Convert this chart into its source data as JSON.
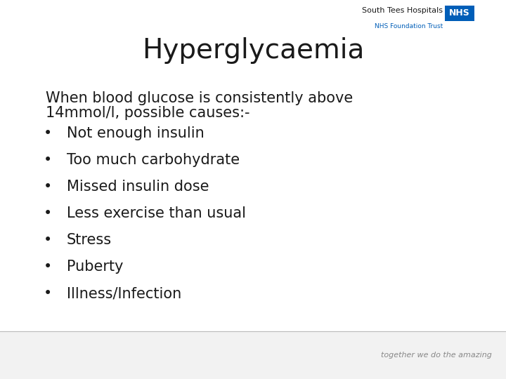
{
  "title": "Hyperglycaemia",
  "title_fontsize": 28,
  "title_color": "#1a1a1a",
  "background_color": "#ffffff",
  "intro_text_line1": "When blood glucose is consistently above",
  "intro_text_line2": "14mmol/l, possible causes:-",
  "bullet_items": [
    "Not enough insulin",
    "Too much carbohydrate",
    "Missed insulin dose",
    "Less exercise than usual",
    "Stress",
    "Puberty",
    "Illness/Infection"
  ],
  "text_color": "#1a1a1a",
  "body_fontsize": 15,
  "intro_fontsize": 15,
  "nhs_text": "South Tees Hospitals",
  "nhs_badge": "NHS",
  "nhs_sub": "NHS Foundation Trust",
  "nhs_blue": "#005EB8",
  "nhs_badge_bg": "#005EB8",
  "footer_text": "together we do the amazing",
  "footer_bg": "#f2f2f2",
  "footer_line_color": "#bbbbbb",
  "bullet_char": "•"
}
